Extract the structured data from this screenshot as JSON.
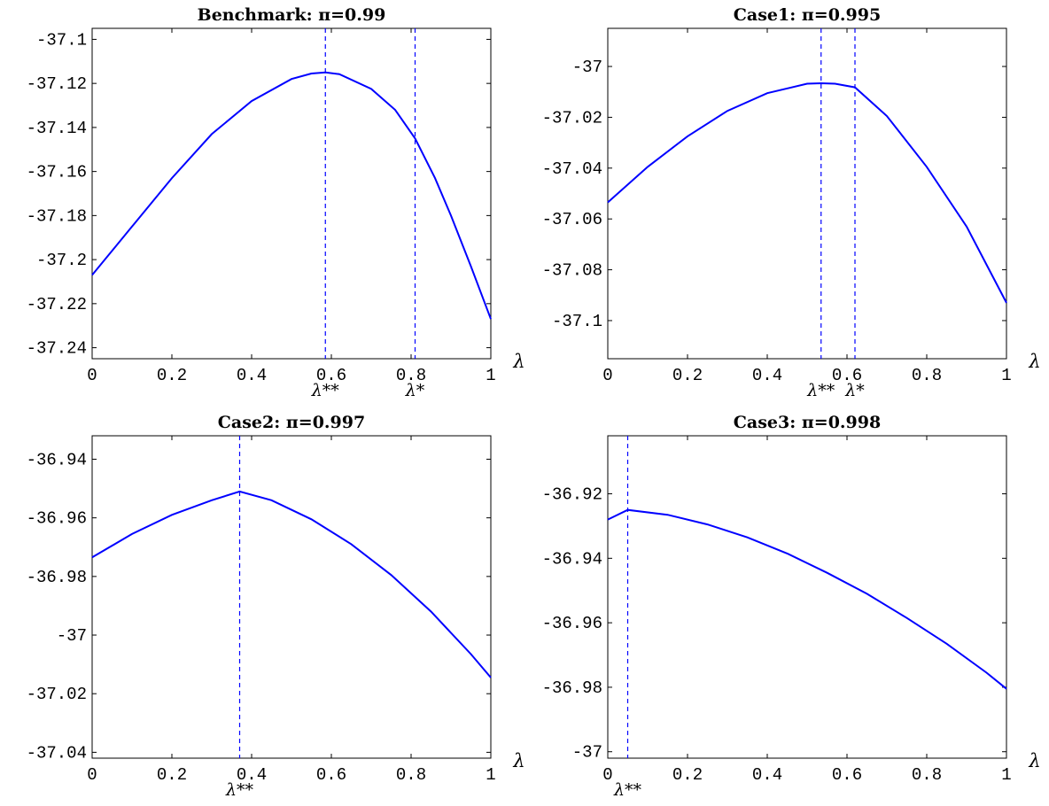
{
  "chart_data": [
    {
      "type": "line",
      "title": "Benchmark:",
      "title_math": "π=0.99",
      "xlabel": "λ",
      "xlim": [
        0,
        1
      ],
      "ylim": [
        -37.245,
        -37.095
      ],
      "xticks": [
        0,
        0.2,
        0.4,
        0.6,
        0.8,
        1
      ],
      "xtick_labels": [
        "0",
        "0.2",
        "0.4",
        "0.6",
        "0.8",
        "1"
      ],
      "yticks": [
        -37.1,
        -37.12,
        -37.14,
        -37.16,
        -37.18,
        -37.2,
        -37.22,
        -37.24
      ],
      "ytick_labels": [
        "-37.1",
        "-37.12",
        "-37.14",
        "-37.16",
        "-37.18",
        "-37.2",
        "-37.22",
        "-37.24"
      ],
      "series": [
        {
          "x": [
            0,
            0.1,
            0.2,
            0.3,
            0.4,
            0.5,
            0.55,
            0.585,
            0.62,
            0.7,
            0.76,
            0.81,
            0.86,
            0.9,
            0.95,
            1
          ],
          "y": [
            -37.207,
            -37.185,
            -37.163,
            -37.143,
            -37.128,
            -37.118,
            -37.1155,
            -37.115,
            -37.1158,
            -37.1225,
            -37.132,
            -37.145,
            -37.163,
            -37.18,
            -37.203,
            -37.227
          ]
        }
      ],
      "vlines": [
        {
          "x": 0.585,
          "label": "λ**"
        },
        {
          "x": 0.81,
          "label": "λ*"
        }
      ]
    },
    {
      "type": "line",
      "title": "Case1:",
      "title_math": "π=0.995",
      "xlabel": "λ",
      "xlim": [
        0,
        1
      ],
      "ylim": [
        -37.115,
        -36.985
      ],
      "xticks": [
        0,
        0.2,
        0.4,
        0.6,
        0.8,
        1
      ],
      "xtick_labels": [
        "0",
        "0.2",
        "0.4",
        "0.6",
        "0.8",
        "1"
      ],
      "yticks": [
        -37,
        -37.02,
        -37.04,
        -37.06,
        -37.08,
        -37.1
      ],
      "ytick_labels": [
        "-37",
        "-37.02",
        "-37.04",
        "-37.06",
        "-37.08",
        "-37.1"
      ],
      "series": [
        {
          "x": [
            0,
            0.1,
            0.2,
            0.3,
            0.4,
            0.5,
            0.535,
            0.57,
            0.62,
            0.7,
            0.8,
            0.9,
            1
          ],
          "y": [
            -37.0535,
            -37.0395,
            -37.0275,
            -37.0175,
            -37.0105,
            -37.0068,
            -37.0066,
            -37.0068,
            -37.0082,
            -37.0195,
            -37.0395,
            -37.063,
            -37.093
          ]
        }
      ],
      "vlines": [
        {
          "x": 0.535,
          "label": "λ**"
        },
        {
          "x": 0.62,
          "label": "λ*"
        }
      ]
    },
    {
      "type": "line",
      "title": "Case2:",
      "title_math": "π=0.997",
      "xlabel": "λ",
      "xlim": [
        0,
        1
      ],
      "ylim": [
        -37.042,
        -36.932
      ],
      "xticks": [
        0,
        0.2,
        0.4,
        0.6,
        0.8,
        1
      ],
      "xtick_labels": [
        "0",
        "0.2",
        "0.4",
        "0.6",
        "0.8",
        "1"
      ],
      "yticks": [
        -36.94,
        -36.96,
        -36.98,
        -37,
        -37.02,
        -37.04
      ],
      "ytick_labels": [
        "-36.94",
        "-36.96",
        "-36.98",
        "-37",
        "-37.02",
        "-37.04"
      ],
      "series": [
        {
          "x": [
            0,
            0.1,
            0.2,
            0.3,
            0.37,
            0.45,
            0.55,
            0.65,
            0.75,
            0.85,
            0.95,
            1
          ],
          "y": [
            -36.9735,
            -36.9655,
            -36.959,
            -36.954,
            -36.951,
            -36.954,
            -36.9605,
            -36.969,
            -36.9795,
            -36.992,
            -37.0065,
            -37.0145
          ]
        }
      ],
      "vlines": [
        {
          "x": 0.37,
          "label": "λ**"
        }
      ]
    },
    {
      "type": "line",
      "title": "Case3:",
      "title_math": "π=0.998",
      "xlabel": "λ",
      "xlim": [
        0,
        1
      ],
      "ylim": [
        -37.002,
        -36.902
      ],
      "xticks": [
        0,
        0.2,
        0.4,
        0.6,
        0.8,
        1
      ],
      "xtick_labels": [
        "0",
        "0.2",
        "0.4",
        "0.6",
        "0.8",
        "1"
      ],
      "yticks": [
        -36.92,
        -36.94,
        -36.96,
        -36.98,
        -37
      ],
      "ytick_labels": [
        "-36.92",
        "-36.94",
        "-36.96",
        "-36.98",
        "-37"
      ],
      "series": [
        {
          "x": [
            0,
            0.05,
            0.15,
            0.25,
            0.35,
            0.45,
            0.55,
            0.65,
            0.75,
            0.85,
            0.95,
            1
          ],
          "y": [
            -36.928,
            -36.925,
            -36.9265,
            -36.9295,
            -36.9335,
            -36.9385,
            -36.9445,
            -36.951,
            -36.9585,
            -36.9665,
            -36.9755,
            -36.9805
          ]
        }
      ],
      "vlines": [
        {
          "x": 0.05,
          "label": "λ**"
        }
      ]
    }
  ]
}
